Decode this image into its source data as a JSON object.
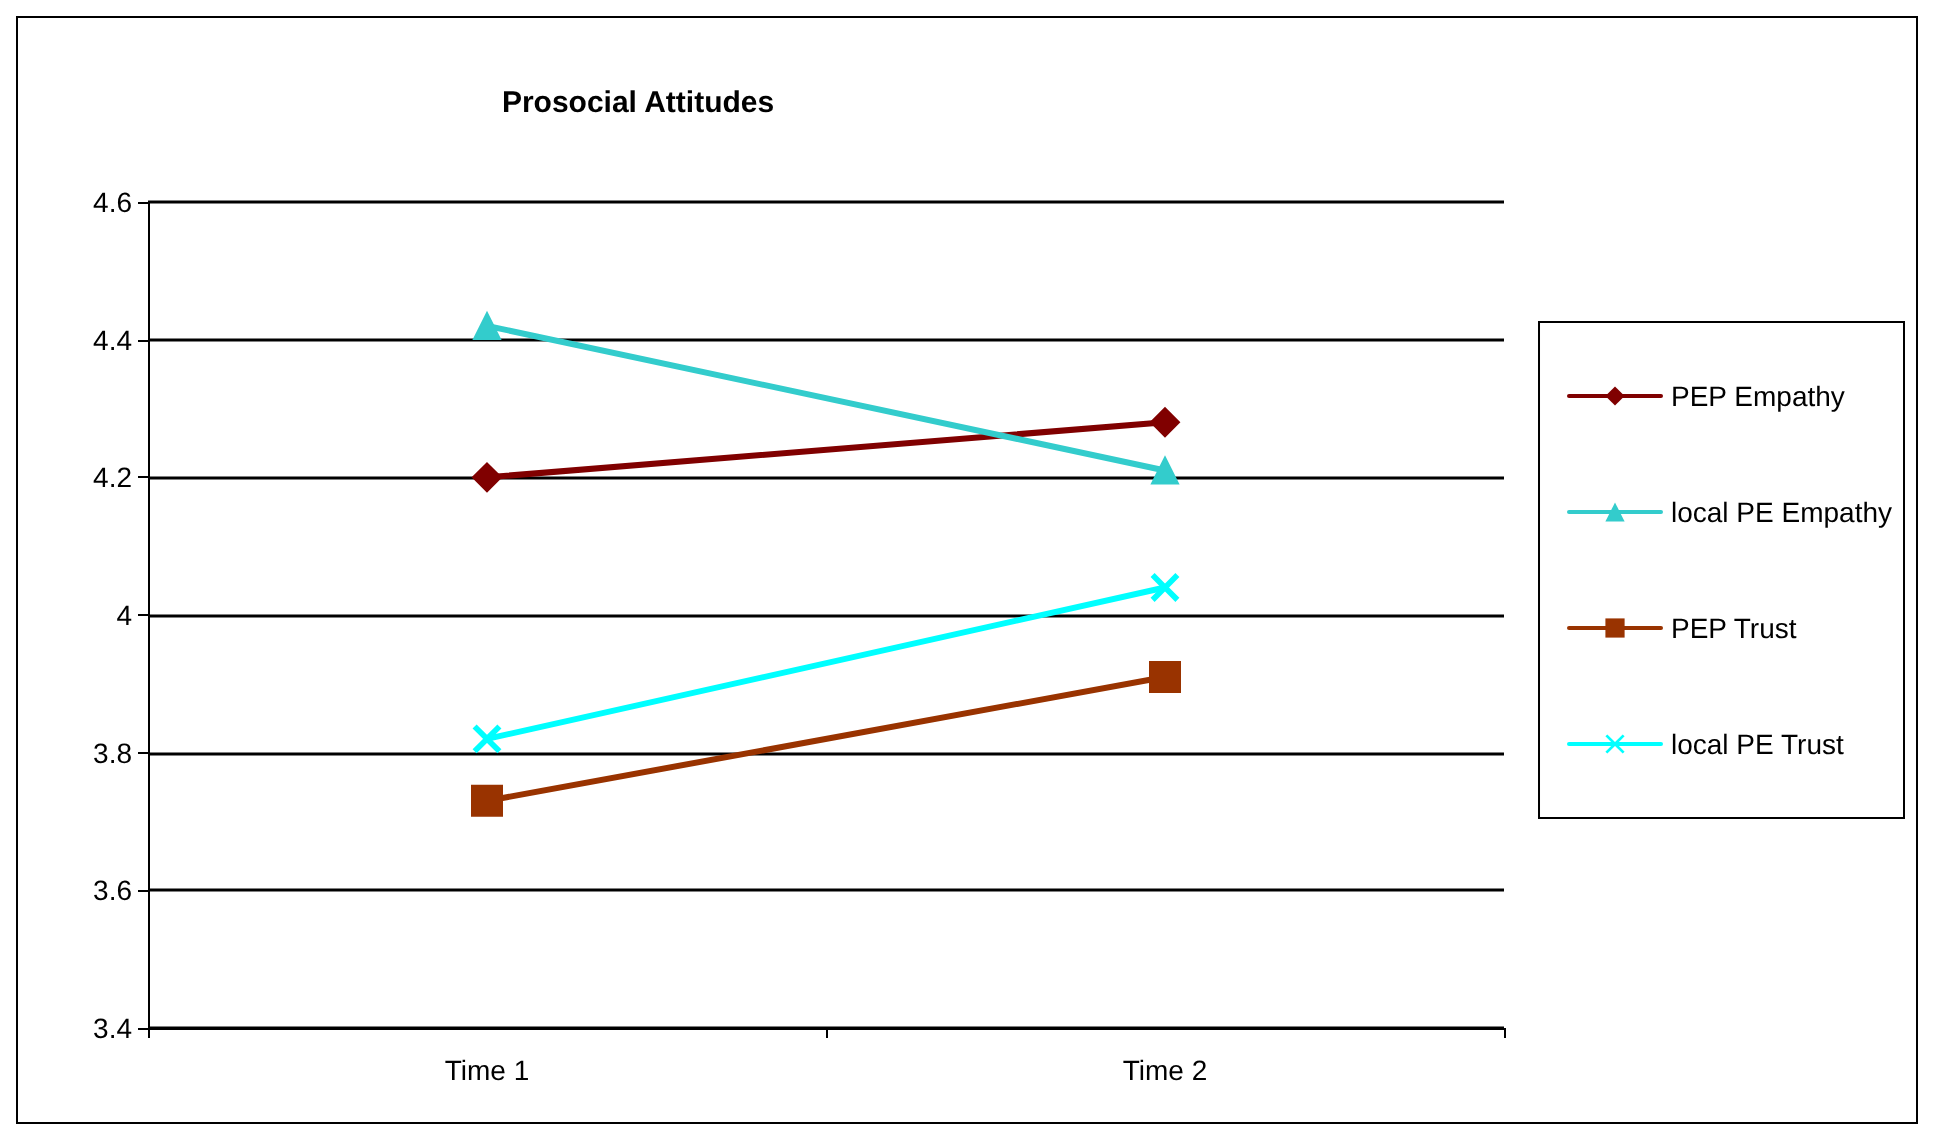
{
  "chart_data": {
    "type": "line",
    "title": "Prosocial Attitudes",
    "categories": [
      "Time 1",
      "Time 2"
    ],
    "series": [
      {
        "name": "PEP Empathy",
        "color": "#800000",
        "marker": "diamond",
        "values": [
          4.2,
          4.28
        ]
      },
      {
        "name": "local PE Empathy",
        "color": "#33cccc",
        "marker": "triangle",
        "values": [
          4.42,
          4.21
        ]
      },
      {
        "name": "PEP Trust",
        "color": "#993300",
        "marker": "square",
        "values": [
          3.73,
          3.91
        ]
      },
      {
        "name": "local PE Trust",
        "color": "#00ffff",
        "marker": "cross",
        "values": [
          3.82,
          4.04
        ]
      }
    ],
    "ylim": [
      3.4,
      4.6
    ],
    "yticks": [
      3.4,
      3.6,
      3.8,
      4,
      4.2,
      4.4,
      4.6
    ],
    "grid": "y",
    "legend": "right"
  }
}
